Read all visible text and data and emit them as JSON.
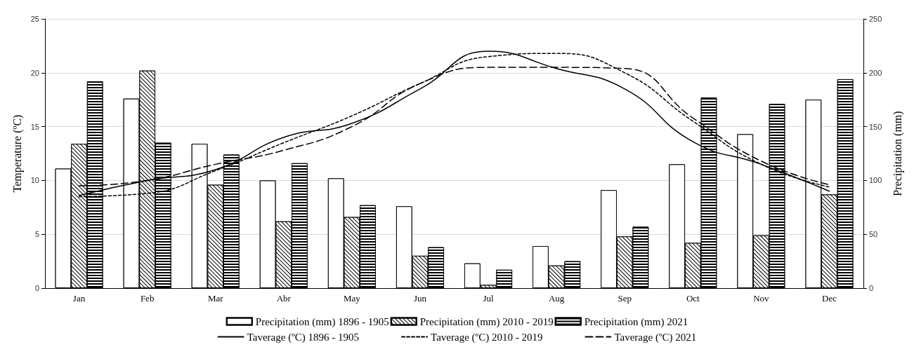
{
  "chart_data": {
    "type": "bar",
    "ylabel": "Temperature (ºC)",
    "y2label": "Precipitation (mm)",
    "categories": [
      "Jan",
      "Feb",
      "Mar",
      "Abr",
      "May",
      "Jun",
      "Jul",
      "Aug",
      "Sep",
      "Oct",
      "Nov",
      "Dec"
    ],
    "series": [
      {
        "name": "Precipitation (mm) 1896 - 1905",
        "axis": "y2",
        "color": "#000000",
        "values": [
          111,
          176,
          134,
          100,
          102,
          76,
          23,
          39,
          91,
          115,
          143,
          175
        ]
      },
      {
        "name": "Precipitation (mm) 2010 - 2019",
        "axis": "y2",
        "color": "#000000",
        "values": [
          134,
          202,
          96,
          62,
          66,
          30,
          3,
          21,
          48,
          42,
          49,
          87
        ]
      },
      {
        "name": "Precipitation (mm) 2021",
        "axis": "y2",
        "color": "#000000",
        "values": [
          192,
          135,
          124,
          116,
          77,
          38,
          17,
          25,
          57,
          177,
          171,
          194
        ]
      },
      {
        "name": "Taverage (ºC) 1896 - 1905",
        "type": "line",
        "line_style": "solid",
        "color": "#000000",
        "values": [
          8.6,
          10.0,
          11.0,
          14.0,
          15.3,
          18.5,
          22.0,
          20.4,
          18.5,
          13.6,
          11.5,
          9.0
        ]
      },
      {
        "name": "Taverage (ºC) 2010 - 2019",
        "type": "line",
        "line_style": "dotted",
        "color": "#000000",
        "values": [
          8.5,
          8.8,
          10.9,
          13.5,
          16.0,
          19.0,
          21.5,
          21.8,
          20.0,
          15.5,
          11.5,
          9.4
        ]
      },
      {
        "name": "Taverage (ºC) 2021",
        "type": "line",
        "line_style": "dashed",
        "color": "#000000",
        "values": [
          9.5,
          10.0,
          11.5,
          12.8,
          15.0,
          19.0,
          20.5,
          20.5,
          20.4,
          15.8,
          11.8,
          9.6
        ]
      }
    ],
    "ylim": [
      0,
      25
    ],
    "yticks": [
      0,
      5,
      10,
      15,
      20,
      25
    ],
    "y2lim": [
      0,
      250
    ],
    "y2ticks": [
      0,
      50,
      100,
      150,
      200,
      250
    ],
    "grid": "y",
    "legend": "bottom",
    "marker": "none"
  }
}
